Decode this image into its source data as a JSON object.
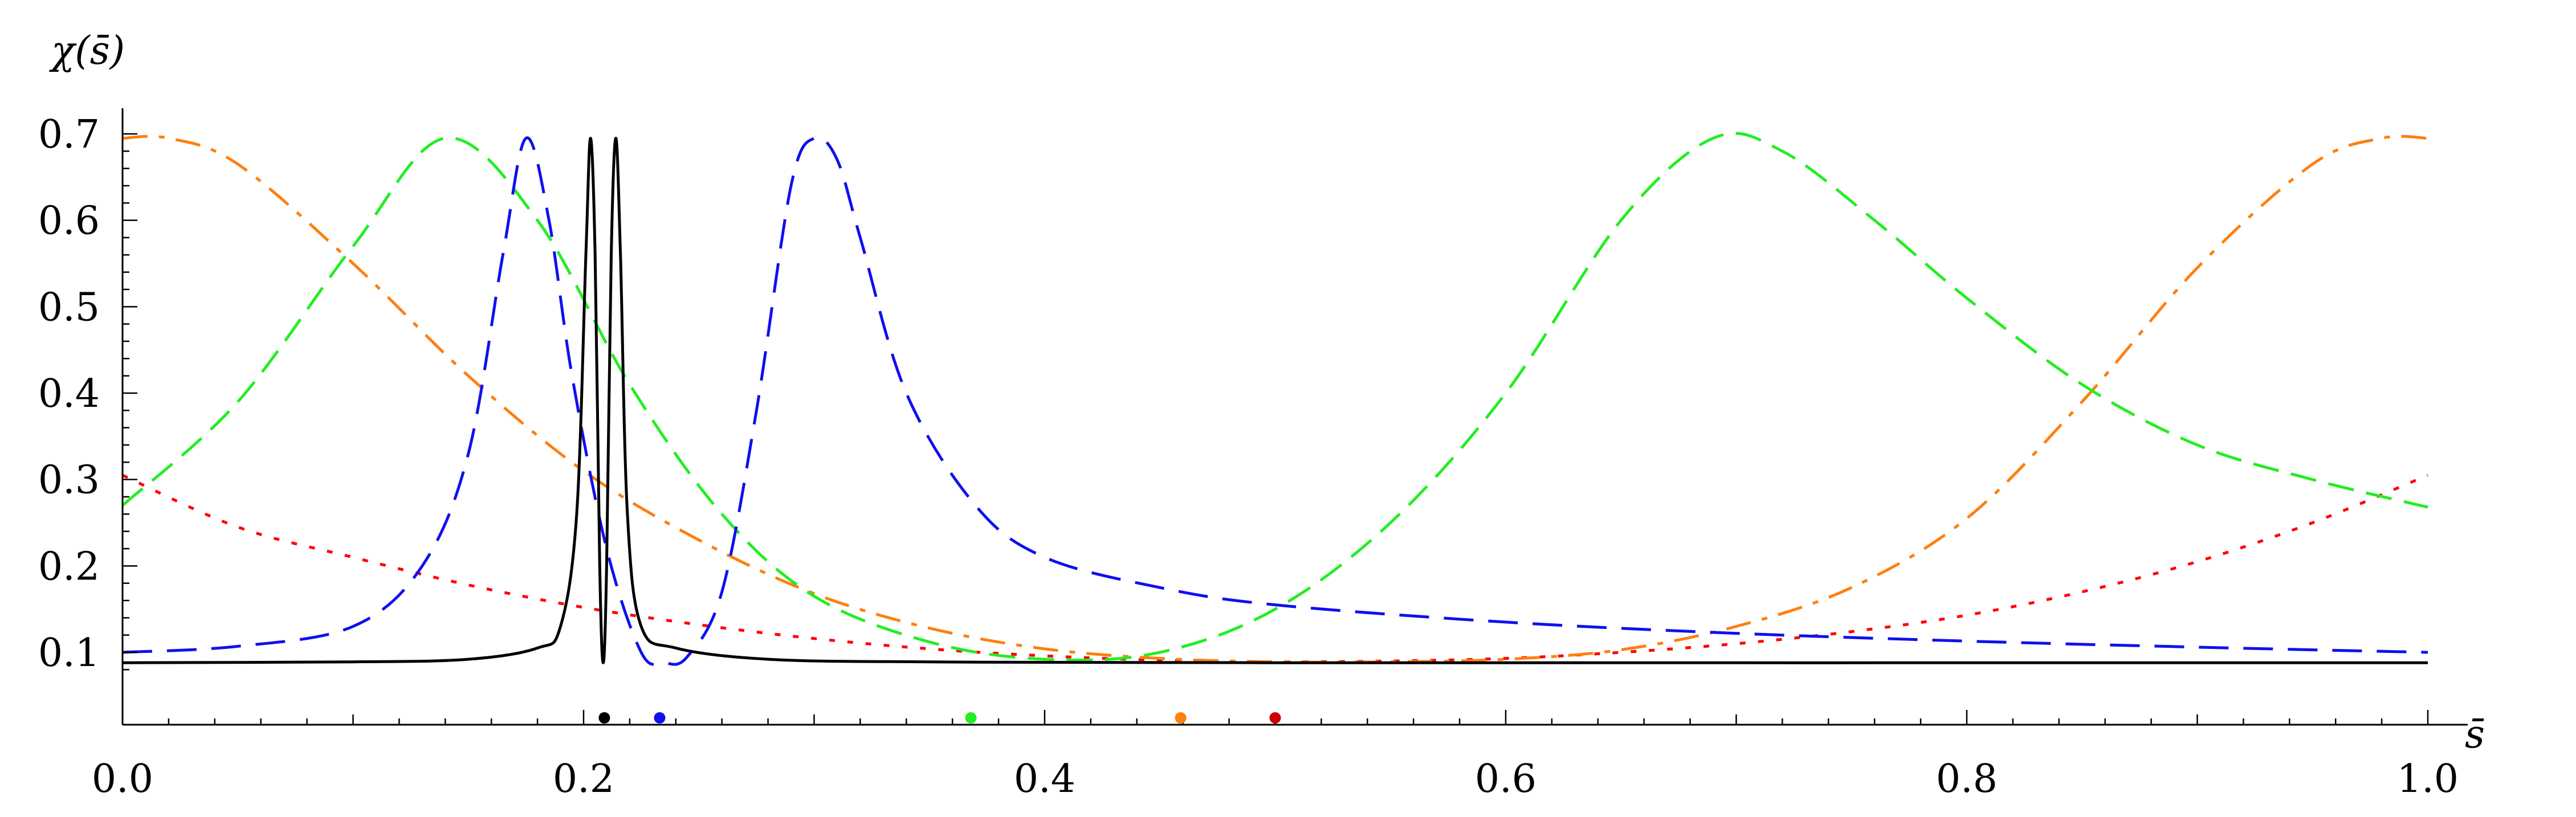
{
  "chart_data": {
    "type": "line",
    "title": "",
    "xlabel": "s̄",
    "ylabel": "χ(s̄)",
    "xlim": [
      0,
      1.0
    ],
    "ylim": [
      0.0,
      0.7
    ],
    "grid": false,
    "legend": "none",
    "x_ticks": [
      "0.0",
      "0.2",
      "0.4",
      "0.6",
      "0.8",
      "1.0"
    ],
    "y_ticks": [
      "0.1",
      "0.2",
      "0.3",
      "0.4",
      "0.5",
      "0.6",
      "0.7"
    ],
    "series": [
      {
        "color": "#ff0000",
        "dash": "dotted",
        "points": [
          [
            0,
            0.305
          ],
          [
            0.05,
            0.245
          ],
          [
            0.1,
            0.21
          ],
          [
            0.15,
            0.178
          ],
          [
            0.2,
            0.152
          ],
          [
            0.25,
            0.132
          ],
          [
            0.3,
            0.116
          ],
          [
            0.35,
            0.104
          ],
          [
            0.4,
            0.096
          ],
          [
            0.45,
            0.091
          ],
          [
            0.5,
            0.089
          ],
          [
            0.55,
            0.09
          ],
          [
            0.6,
            0.093
          ],
          [
            0.65,
            0.1
          ],
          [
            0.7,
            0.11
          ],
          [
            0.75,
            0.124
          ],
          [
            0.8,
            0.143
          ],
          [
            0.85,
            0.17
          ],
          [
            0.9,
            0.205
          ],
          [
            0.95,
            0.25
          ],
          [
            1.0,
            0.305
          ]
        ]
      },
      {
        "color": "#ff7f0e",
        "dash": "dashdot",
        "points": [
          [
            0,
            0.695
          ],
          [
            0.02,
            0.695
          ],
          [
            0.05,
            0.665
          ],
          [
            0.1,
            0.55
          ],
          [
            0.15,
            0.42
          ],
          [
            0.2,
            0.31
          ],
          [
            0.25,
            0.23
          ],
          [
            0.3,
            0.168
          ],
          [
            0.35,
            0.128
          ],
          [
            0.4,
            0.104
          ],
          [
            0.45,
            0.093
          ],
          [
            0.5,
            0.089
          ],
          [
            0.55,
            0.089
          ],
          [
            0.6,
            0.092
          ],
          [
            0.65,
            0.103
          ],
          [
            0.7,
            0.13
          ],
          [
            0.75,
            0.175
          ],
          [
            0.8,
            0.255
          ],
          [
            0.85,
            0.39
          ],
          [
            0.9,
            0.545
          ],
          [
            0.95,
            0.665
          ],
          [
            0.98,
            0.695
          ],
          [
            1.0,
            0.695
          ]
        ]
      },
      {
        "color": "#22ee22",
        "dash": "dashed",
        "points": [
          [
            0,
            0.27
          ],
          [
            0.05,
            0.39
          ],
          [
            0.1,
            0.57
          ],
          [
            0.14,
            0.695
          ],
          [
            0.18,
            0.6
          ],
          [
            0.22,
            0.41
          ],
          [
            0.26,
            0.26
          ],
          [
            0.3,
            0.165
          ],
          [
            0.35,
            0.112
          ],
          [
            0.4,
            0.092
          ],
          [
            0.45,
            0.1
          ],
          [
            0.5,
            0.15
          ],
          [
            0.55,
            0.25
          ],
          [
            0.6,
            0.4
          ],
          [
            0.65,
            0.6
          ],
          [
            0.69,
            0.695
          ],
          [
            0.72,
            0.68
          ],
          [
            0.76,
            0.6
          ],
          [
            0.8,
            0.51
          ],
          [
            0.85,
            0.41
          ],
          [
            0.9,
            0.34
          ],
          [
            0.95,
            0.3
          ],
          [
            1.0,
            0.268
          ]
        ]
      },
      {
        "color": "#1010ee",
        "dash": "longdash",
        "points": [
          [
            0,
            0.1
          ],
          [
            0.05,
            0.107
          ],
          [
            0.1,
            0.13
          ],
          [
            0.13,
            0.2
          ],
          [
            0.15,
            0.33
          ],
          [
            0.165,
            0.56
          ],
          [
            0.175,
            0.695
          ],
          [
            0.185,
            0.6
          ],
          [
            0.195,
            0.42
          ],
          [
            0.21,
            0.22
          ],
          [
            0.225,
            0.1
          ],
          [
            0.235,
            0.088
          ],
          [
            0.245,
            0.095
          ],
          [
            0.26,
            0.17
          ],
          [
            0.275,
            0.38
          ],
          [
            0.29,
            0.64
          ],
          [
            0.3,
            0.695
          ],
          [
            0.31,
            0.67
          ],
          [
            0.32,
            0.58
          ],
          [
            0.34,
            0.4
          ],
          [
            0.37,
            0.27
          ],
          [
            0.4,
            0.21
          ],
          [
            0.45,
            0.175
          ],
          [
            0.5,
            0.155
          ],
          [
            0.6,
            0.135
          ],
          [
            0.7,
            0.122
          ],
          [
            0.8,
            0.113
          ],
          [
            0.9,
            0.106
          ],
          [
            1.0,
            0.1
          ]
        ]
      },
      {
        "color": "#000000",
        "dash": "solid",
        "points": [
          [
            0,
            0.088
          ],
          [
            0.1,
            0.089
          ],
          [
            0.15,
            0.092
          ],
          [
            0.18,
            0.105
          ],
          [
            0.19,
            0.13
          ],
          [
            0.197,
            0.26
          ],
          [
            0.201,
            0.56
          ],
          [
            0.203,
            0.695
          ],
          [
            0.205,
            0.56
          ],
          [
            0.207,
            0.2
          ],
          [
            0.2085,
            0.088
          ],
          [
            0.21,
            0.2
          ],
          [
            0.212,
            0.56
          ],
          [
            0.214,
            0.695
          ],
          [
            0.216,
            0.56
          ],
          [
            0.219,
            0.26
          ],
          [
            0.225,
            0.13
          ],
          [
            0.24,
            0.105
          ],
          [
            0.28,
            0.092
          ],
          [
            0.35,
            0.089
          ],
          [
            0.5,
            0.088
          ],
          [
            1.0,
            0.088
          ]
        ]
      }
    ],
    "axis_dots": [
      {
        "x": 0.209,
        "color": "#000000"
      },
      {
        "x": 0.233,
        "color": "#1010ee"
      },
      {
        "x": 0.368,
        "color": "#22ee22"
      },
      {
        "x": 0.459,
        "color": "#ff7f0e"
      },
      {
        "x": 0.5,
        "color": "#cc0000"
      }
    ]
  }
}
